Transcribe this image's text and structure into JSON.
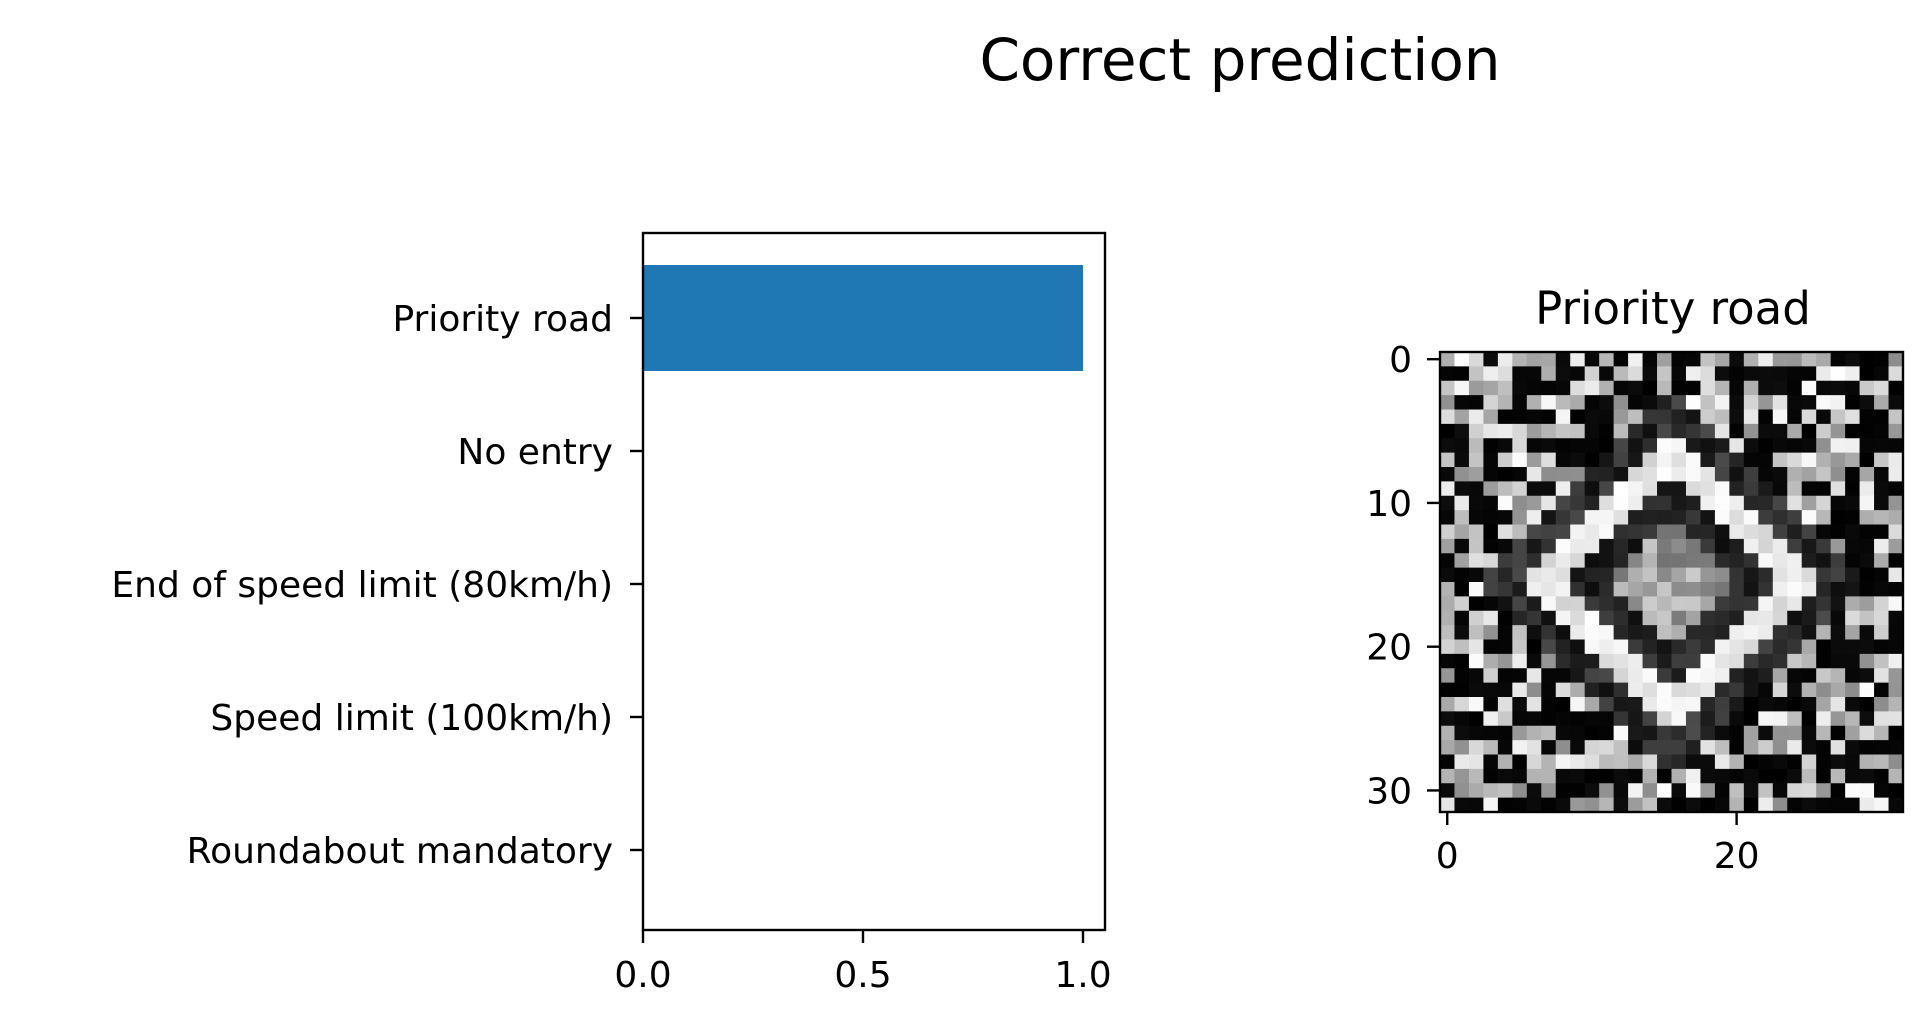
{
  "suptitle": "Correct prediction",
  "chart_data": [
    {
      "type": "bar",
      "orientation": "horizontal",
      "title": "",
      "xlabel": "",
      "ylabel": "",
      "categories": [
        "Priority road",
        "No entry",
        "End of speed limit (80km/h)",
        "Speed limit (100km/h)",
        "Roundabout mandatory"
      ],
      "values": [
        1.0,
        0.0,
        0.0,
        0.0,
        0.0
      ],
      "xlim": [
        0,
        1.05
      ],
      "xticks": [
        "0.0",
        "0.5",
        "1.0"
      ],
      "bar_color": "#1f77b4",
      "grid": false,
      "legend": "none"
    },
    {
      "type": "heatmap",
      "title": "Priority road",
      "colormap": "gray",
      "image_size": [
        32,
        32
      ],
      "xticks": [
        "0",
        "20"
      ],
      "yticks": [
        "0",
        "10",
        "20",
        "30"
      ]
    }
  ]
}
